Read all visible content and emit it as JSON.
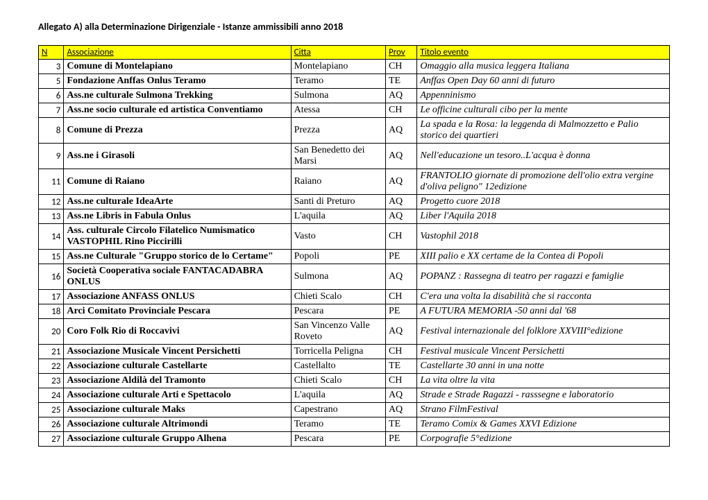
{
  "title": "Allegato A) alla Determinazione Dirigenziale  - Istanze ammissibili anno 2018",
  "headers": {
    "n": "N",
    "assoc": "Associazione",
    "citta": "Citta",
    "prov": "Prov",
    "titolo": "Titolo evento"
  },
  "rows": [
    {
      "n": "3",
      "assoc": "Comune di Montelapiano",
      "citta": "Montelapiano",
      "prov": "CH",
      "titolo": "Omaggio alla musica leggera Italiana"
    },
    {
      "n": "5",
      "assoc": "Fondazione Anffas Onlus Teramo",
      "citta": "Teramo",
      "prov": "TE",
      "titolo": "Anffas Open Day 60 anni di futuro"
    },
    {
      "n": "6",
      "assoc": "Ass.ne culturale Sulmona Trekking",
      "citta": "Sulmona",
      "prov": "AQ",
      "titolo": "Appenninismo"
    },
    {
      "n": "7",
      "assoc": "Ass.ne socio culturale ed artistica Conventiamo",
      "citta": "Atessa",
      "prov": "CH",
      "titolo": "Le officine culturali cibo per la mente"
    },
    {
      "n": "8",
      "assoc": "Comune di Prezza",
      "citta": "Prezza",
      "prov": "AQ",
      "titolo": "La spada e la Rosa: la leggenda di Malmozzetto e Palio storico dei quartieri"
    },
    {
      "n": "9",
      "assoc": "Ass.ne i Girasoli",
      "citta": "San Benedetto dei Marsi",
      "prov": "AQ",
      "titolo": "Nell'educazione un tesoro..L'acqua è donna"
    },
    {
      "n": "11",
      "assoc": "Comune di Raiano",
      "citta": "Raiano",
      "prov": "AQ",
      "titolo": "FRANTOLIO giornate di promozione dell'olio extra vergine d'oliva peligno\" 12edizione"
    },
    {
      "n": "12",
      "assoc": "Ass.ne culturale IdeaArte",
      "citta": "Santi di Preturo",
      "prov": "AQ",
      "titolo": "Progetto cuore 2018"
    },
    {
      "n": "13",
      "assoc": "Ass.ne Libris in Fabula Onlus",
      "citta": "L'aquila",
      "prov": "AQ",
      "titolo": "Liber l'Aquila 2018"
    },
    {
      "n": "14",
      "assoc": " Ass. culturale Circolo Filatelico Numismatico VASTOPHIL Rino Piccirilli",
      "citta": "Vasto",
      "prov": "CH",
      "titolo": "Vastophil 2018"
    },
    {
      "n": "15",
      "assoc": "Ass.ne Culturale \"Gruppo storico de lo Certame\"",
      "citta": "Popoli",
      "prov": "PE",
      "titolo": "XIII palio e XX certame de la Contea di Popoli"
    },
    {
      "n": "16",
      "assoc": "Società Cooperativa sociale FANTACADABRA ONLUS",
      "citta": "Sulmona",
      "prov": "AQ",
      "titolo": "POPANZ : Rassegna di teatro per ragazzi e famiglie"
    },
    {
      "n": "17",
      "assoc": "Associazione ANFASS ONLUS",
      "citta": "Chieti Scalo",
      "prov": "CH",
      "titolo": "C'era una volta la disabilità che si racconta"
    },
    {
      "n": "18",
      "assoc": "Arci Comitato Provinciale Pescara",
      "citta": "Pescara",
      "prov": "PE",
      "titolo": "A FUTURA MEMORIA -50 anni dal '68"
    },
    {
      "n": "20",
      "assoc": "Coro Folk Rio di Roccavivi",
      "citta": "San Vincenzo Valle Roveto",
      "prov": "AQ",
      "titolo": "Festival internazionale del folklore XXVIII°edizione"
    },
    {
      "n": "21",
      "assoc": "Associazione Musicale Vincent Persichetti",
      "citta": "Torricella Peligna",
      "prov": "CH",
      "titolo": "Festival musicale Vincent Persichetti"
    },
    {
      "n": "22",
      "assoc": "Associazione culturale Castellarte",
      "citta": "Castellalto",
      "prov": "TE",
      "titolo": "Castellarte 30 anni in una notte"
    },
    {
      "n": "23",
      "assoc": "Associazione Aldilà del Tramonto",
      "citta": "Chieti Scalo",
      "prov": "CH",
      "titolo": "La vita oltre la vita"
    },
    {
      "n": "24",
      "assoc": "Associazione culturale Arti e Spettacolo",
      "citta": "L'aquila",
      "prov": "AQ",
      "titolo": "Strade e Strade Ragazzi - rasssegne e laboratorio"
    },
    {
      "n": "25",
      "assoc": "Associazione culturale Maks",
      "citta": "Capestrano",
      "prov": "AQ",
      "titolo": "Strano FilmFestival"
    },
    {
      "n": "26",
      "assoc": "Associazione culturale Altrimondi",
      "citta": "Teramo",
      "prov": "TE",
      "titolo": "Teramo Comix   & Games XXVI Edizione"
    },
    {
      "n": "27",
      "assoc": "Associazione culturale Gruppo Alhena",
      "citta": "Pescara",
      "prov": "PE",
      "titolo": "Corpografie 5°edizione"
    }
  ],
  "style": {
    "header_bg": "#ffff00",
    "border_color": "#000000",
    "page_bg": "#ffffff"
  }
}
